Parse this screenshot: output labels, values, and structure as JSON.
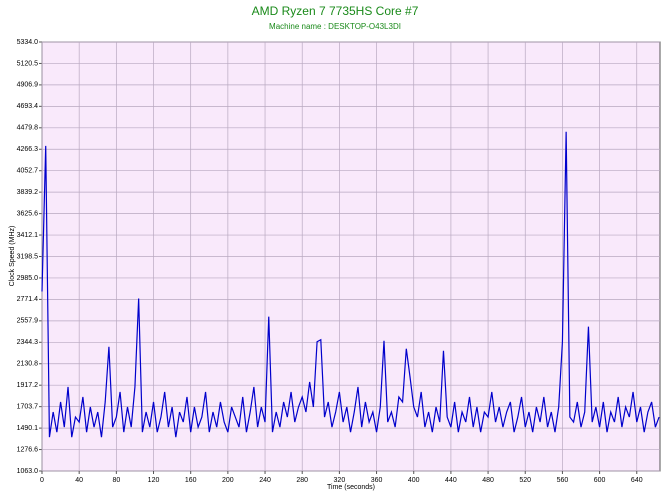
{
  "chart_data": {
    "type": "line",
    "title": "AMD Ryzen 7 7735HS Core #7",
    "subtitle": "Machine name : DESKTOP-O43L3DI",
    "x_label": "Time (seconds)",
    "y_label": "Clock Speed (MHz)",
    "grid": true,
    "xlim": [
      0,
      665
    ],
    "xticks": [
      0,
      40,
      80,
      120,
      160,
      200,
      240,
      280,
      320,
      360,
      400,
      440,
      480,
      520,
      560,
      600,
      640
    ],
    "ylim": [
      1063.0,
      5334.0
    ],
    "yticks": [
      {
        "value": 1063.0,
        "label": "1063.0"
      },
      {
        "value": 1276.6,
        "label": "1276.6"
      },
      {
        "value": 1490.1,
        "label": "1490.1"
      },
      {
        "value": 1703.7,
        "label": "1703.7"
      },
      {
        "value": 1917.2,
        "label": "1917.2"
      },
      {
        "value": 2130.8,
        "label": "2130.8"
      },
      {
        "value": 2344.3,
        "label": "2344.3"
      },
      {
        "value": 2557.9,
        "label": "2557.9"
      },
      {
        "value": 2771.4,
        "label": "2771.4"
      },
      {
        "value": 2985.0,
        "label": "2985.0"
      },
      {
        "value": 3198.5,
        "label": "3198.5"
      },
      {
        "value": 3412.1,
        "label": "3412.1"
      },
      {
        "value": 3625.6,
        "label": "3625.6"
      },
      {
        "value": 3839.2,
        "label": "3839.2"
      },
      {
        "value": 4052.7,
        "label": "4052.7"
      },
      {
        "value": 4266.3,
        "label": "4266.3"
      },
      {
        "value": 4479.8,
        "label": "4479.8"
      },
      {
        "value": 4693.4,
        "label": "4693.4"
      },
      {
        "value": 4906.9,
        "label": "4906.9"
      },
      {
        "value": 5120.5,
        "label": "5120.5"
      },
      {
        "value": 5334.0,
        "label": "5334.0"
      }
    ],
    "x": [
      0,
      4,
      8,
      12,
      16,
      20,
      24,
      28,
      32,
      36,
      40,
      44,
      48,
      52,
      56,
      60,
      64,
      68,
      72,
      76,
      80,
      84,
      88,
      92,
      96,
      100,
      104,
      108,
      112,
      116,
      120,
      124,
      128,
      132,
      136,
      140,
      144,
      148,
      152,
      156,
      160,
      164,
      168,
      172,
      176,
      180,
      184,
      188,
      192,
      196,
      200,
      204,
      208,
      212,
      216,
      220,
      224,
      228,
      232,
      236,
      240,
      244,
      248,
      252,
      256,
      260,
      264,
      268,
      272,
      276,
      280,
      284,
      288,
      292,
      296,
      300,
      304,
      308,
      312,
      316,
      320,
      324,
      328,
      332,
      336,
      340,
      344,
      348,
      352,
      356,
      360,
      364,
      368,
      372,
      376,
      380,
      384,
      388,
      392,
      396,
      400,
      404,
      408,
      412,
      416,
      420,
      424,
      428,
      432,
      436,
      440,
      444,
      448,
      452,
      456,
      460,
      464,
      468,
      472,
      476,
      480,
      484,
      488,
      492,
      496,
      500,
      504,
      508,
      512,
      516,
      520,
      524,
      528,
      532,
      536,
      540,
      544,
      548,
      552,
      556,
      560,
      564,
      568,
      572,
      576,
      580,
      584,
      588,
      592,
      596,
      600,
      604,
      608,
      612,
      616,
      620,
      624,
      628,
      632,
      636,
      640,
      644,
      648,
      652,
      656,
      660,
      664
    ],
    "series": [
      {
        "name": "Clock Speed",
        "color": "#0000cc",
        "values": [
          2850,
          4300,
          1400,
          1650,
          1450,
          1750,
          1500,
          1900,
          1400,
          1600,
          1550,
          1800,
          1450,
          1700,
          1500,
          1650,
          1400,
          1750,
          2300,
          1500,
          1600,
          1850,
          1450,
          1700,
          1500,
          1900,
          2780,
          1450,
          1650,
          1500,
          1750,
          1450,
          1600,
          1850,
          1500,
          1700,
          1400,
          1650,
          1550,
          1800,
          1450,
          1700,
          1500,
          1600,
          1850,
          1450,
          1650,
          1500,
          1750,
          1550,
          1450,
          1700,
          1600,
          1500,
          1800,
          1450,
          1650,
          1900,
          1500,
          1700,
          1550,
          2600,
          1450,
          1650,
          1500,
          1750,
          1600,
          1850,
          1550,
          1700,
          1800,
          1650,
          1950,
          1700,
          2350,
          2370,
          1600,
          1750,
          1500,
          1650,
          1850,
          1550,
          1700,
          1450,
          1650,
          1900,
          1500,
          1750,
          1550,
          1650,
          1450,
          1700,
          2360,
          1550,
          1650,
          1500,
          1800,
          1750,
          2280,
          2000,
          1700,
          1600,
          1850,
          1500,
          1650,
          1450,
          1700,
          1550,
          2260,
          1600,
          1500,
          1750,
          1450,
          1650,
          1550,
          1800,
          1500,
          1700,
          1450,
          1650,
          1600,
          1850,
          1550,
          1700,
          1500,
          1650,
          1750,
          1450,
          1600,
          1800,
          1500,
          1650,
          1450,
          1700,
          1550,
          1800,
          1500,
          1650,
          1450,
          1700,
          2350,
          4440,
          1600,
          1550,
          1750,
          1500,
          1650,
          2500,
          1550,
          1700,
          1500,
          1750,
          1450,
          1650,
          1550,
          1800,
          1500,
          1700,
          1600,
          1850,
          1550,
          1700,
          1450,
          1650,
          1750,
          1500,
          1600
        ]
      }
    ]
  }
}
